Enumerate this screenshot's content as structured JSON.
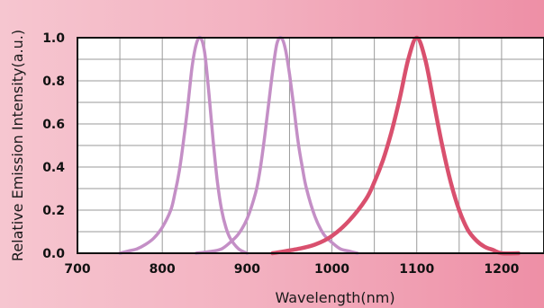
{
  "chart_data": {
    "type": "line",
    "title": "",
    "xlabel": "Wavelength(nm)",
    "ylabel": "Relative Emission Intensity(a.u.)",
    "xlim": [
      700,
      1250
    ],
    "ylim": [
      0,
      1.0
    ],
    "grid": true,
    "x_ticks": [
      "700",
      "800",
      "900",
      "1000",
      "1100",
      "1200"
    ],
    "y_ticks": [
      "0.0",
      "0.2",
      "0.4",
      "0.6",
      "0.8",
      "1.0"
    ],
    "series": [
      {
        "color": "#c48fc6",
        "x": [
          750,
          760,
          770,
          780,
          790,
          800,
          810,
          815,
          820,
          825,
          830,
          835,
          840,
          845,
          850,
          855,
          860,
          865,
          870,
          875,
          880,
          890,
          900
        ],
        "y": [
          0.0,
          0.01,
          0.02,
          0.04,
          0.07,
          0.12,
          0.2,
          0.28,
          0.38,
          0.52,
          0.68,
          0.86,
          0.97,
          1.0,
          0.93,
          0.74,
          0.52,
          0.33,
          0.2,
          0.12,
          0.07,
          0.02,
          0.0
        ]
      },
      {
        "color": "#c48fc6",
        "x": [
          840,
          860,
          870,
          880,
          890,
          900,
          910,
          915,
          920,
          925,
          930,
          935,
          940,
          945,
          950,
          955,
          960,
          965,
          970,
          980,
          990,
          1000,
          1010,
          1020,
          1030
        ],
        "y": [
          0.0,
          0.01,
          0.02,
          0.05,
          0.09,
          0.16,
          0.28,
          0.38,
          0.52,
          0.68,
          0.84,
          0.97,
          1.0,
          0.95,
          0.83,
          0.68,
          0.52,
          0.4,
          0.3,
          0.17,
          0.09,
          0.05,
          0.02,
          0.01,
          0.0
        ]
      },
      {
        "color": "#d9506e",
        "x": [
          930,
          960,
          980,
          1000,
          1020,
          1040,
          1050,
          1060,
          1070,
          1080,
          1090,
          1100,
          1110,
          1120,
          1130,
          1140,
          1150,
          1160,
          1170,
          1180,
          1190,
          1200,
          1220
        ],
        "y": [
          0.0,
          0.02,
          0.04,
          0.08,
          0.15,
          0.25,
          0.33,
          0.43,
          0.56,
          0.72,
          0.9,
          1.0,
          0.9,
          0.7,
          0.5,
          0.33,
          0.2,
          0.11,
          0.06,
          0.03,
          0.015,
          0.0,
          0.0
        ]
      }
    ]
  }
}
